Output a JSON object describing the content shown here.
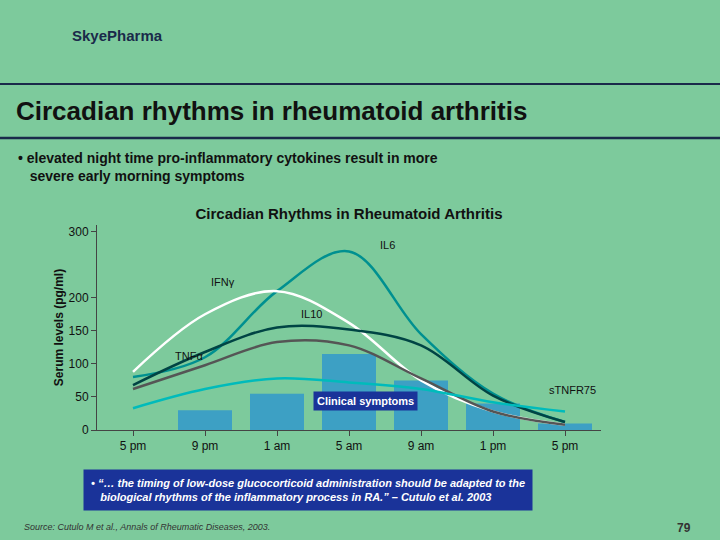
{
  "title": "Circadian rhythms in rheumatoid arthritis",
  "subtitle": "• elevated night time pro-inflammatory cytokines result in more\n   severe early morning symptoms",
  "logo": "SkyePharma",
  "quote": "• “… the timing of low-dose glucocorticoid administration should be adapted to the\n   biological rhythms of the inflammatory process in RA.” – Cutulo et al. 2003",
  "source": "Source: Cutulo M et al., Annals of Rheumatic Diseases, 2003.",
  "page": "79",
  "chart_data": {
    "type": "bar",
    "title": "Circadian Rhythms in Rheumatoid Arthritis",
    "ylabel": "Serum levels (pg/ml)",
    "categories": [
      "5 pm",
      "9 pm",
      "1 am",
      "5 am",
      "9 am",
      "1 pm",
      "5 pm"
    ],
    "series": [
      {
        "name": "Clinical symptoms",
        "type": "bar",
        "color": "#3399cc",
        "values": [
          0,
          30,
          55,
          115,
          75,
          40,
          10
        ]
      },
      {
        "name": "IL6",
        "type": "line",
        "color": "#009090",
        "values": [
          80,
          110,
          210,
          270,
          145,
          55,
          12
        ]
      },
      {
        "name": "IFNγ",
        "type": "line",
        "color": "#ffffff",
        "values": [
          88,
          175,
          210,
          162,
          75,
          28,
          8
        ]
      },
      {
        "name": "IL10",
        "type": "line",
        "color": "#004444",
        "values": [
          68,
          118,
          155,
          152,
          128,
          52,
          12
        ]
      },
      {
        "name": "TNFα",
        "type": "line",
        "color": "#555555",
        "values": [
          62,
          98,
          133,
          128,
          78,
          28,
          8
        ]
      },
      {
        "name": "sTNFR75",
        "type": "line",
        "color": "#00bbbb",
        "values": [
          33,
          62,
          78,
          72,
          62,
          42,
          28
        ]
      }
    ],
    "ylim": [
      0,
      310
    ],
    "yticks": [
      0,
      50,
      100,
      150,
      200,
      300
    ],
    "grid": false,
    "annotations": [
      {
        "text": "IL6",
        "x": 3.4,
        "y": 268
      },
      {
        "text": "IFNγ",
        "x": 1.05,
        "y": 212
      },
      {
        "text": "IL10",
        "x": 2.3,
        "y": 163
      },
      {
        "text": "TNFα",
        "x": 0.55,
        "y": 100
      },
      {
        "text": "sTNFR75",
        "x": 5.75,
        "y": 48
      },
      {
        "text": "Clinical symptoms",
        "x": 2.5,
        "y": 28
      }
    ]
  }
}
